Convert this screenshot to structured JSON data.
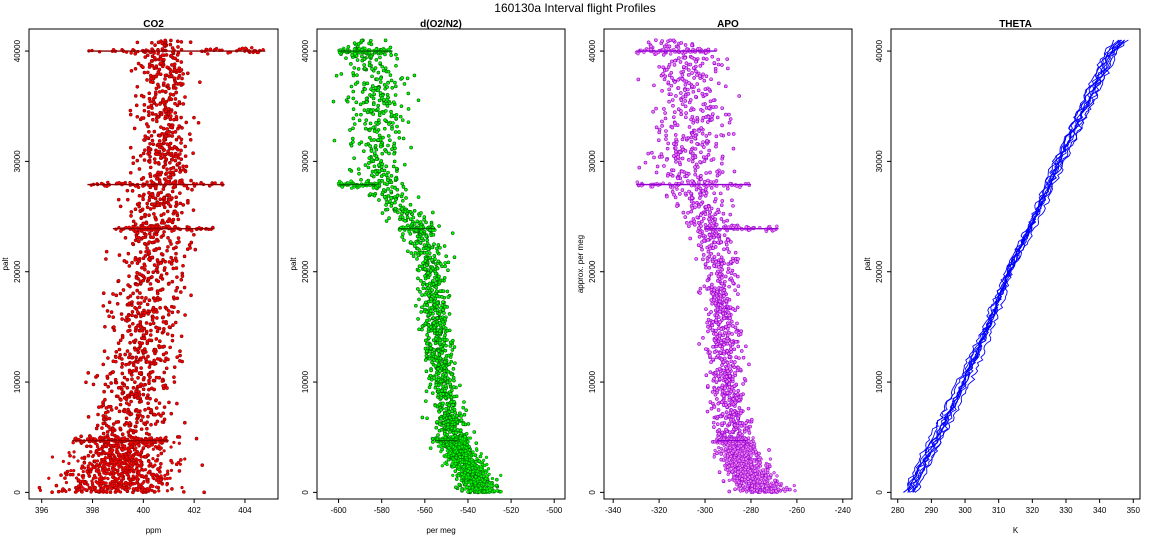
{
  "figure": {
    "title": "160130a   Interval flight Profiles"
  },
  "chart_data": [
    {
      "type": "scatter",
      "title": "CO2",
      "xlabel": "ppm",
      "ylabel": "palt",
      "xlim": [
        395.5,
        405.3
      ],
      "ylim": [
        -600,
        42000
      ],
      "xticks": [
        396,
        398,
        400,
        402,
        404
      ],
      "yticks": [
        0,
        10000,
        20000,
        30000,
        40000
      ],
      "grid": false,
      "colors": {
        "fill": "#ff0000",
        "edge": "#8b0000"
      },
      "profile": [
        {
          "y": 0,
          "x": 398.8,
          "spread": 2.4
        },
        {
          "y": 2000,
          "x": 399.0,
          "spread": 2.0
        },
        {
          "y": 5000,
          "x": 399.3,
          "spread": 1.6
        },
        {
          "y": 10000,
          "x": 399.6,
          "spread": 1.4
        },
        {
          "y": 15000,
          "x": 400.0,
          "spread": 1.3
        },
        {
          "y": 20000,
          "x": 400.3,
          "spread": 1.2
        },
        {
          "y": 25000,
          "x": 400.6,
          "spread": 1.1
        },
        {
          "y": 30000,
          "x": 400.8,
          "spread": 0.9
        },
        {
          "y": 35000,
          "x": 400.8,
          "spread": 0.9
        },
        {
          "y": 41000,
          "x": 400.8,
          "spread": 0.9
        }
      ],
      "level_legs": [
        {
          "y": 40000,
          "x0": 397.8,
          "x1": 404.8
        },
        {
          "y": 27900,
          "x0": 397.8,
          "x1": 403.2
        },
        {
          "y": 23900,
          "x0": 398.8,
          "x1": 402.8
        },
        {
          "y": 4700,
          "x0": 397.2,
          "x1": 401.0
        }
      ],
      "n_points": 1500
    },
    {
      "type": "scatter",
      "title": "d(O2/N2)",
      "xlabel": "per meg",
      "ylabel": "palt",
      "xlim": [
        -610,
        -495
      ],
      "ylim": [
        -600,
        42000
      ],
      "xticks": [
        -600,
        -580,
        -560,
        -540,
        -520,
        -500
      ],
      "yticks": [
        0,
        10000,
        20000,
        30000,
        40000
      ],
      "grid": false,
      "colors": {
        "fill": "#00ff00",
        "edge": "#006400"
      },
      "profile": [
        {
          "y": 0,
          "x": -533,
          "spread": 9
        },
        {
          "y": 2000,
          "x": -540,
          "spread": 8
        },
        {
          "y": 5000,
          "x": -547,
          "spread": 7
        },
        {
          "y": 10000,
          "x": -552,
          "spread": 6
        },
        {
          "y": 15000,
          "x": -555,
          "spread": 6
        },
        {
          "y": 20000,
          "x": -557,
          "spread": 6
        },
        {
          "y": 24000,
          "x": -562,
          "spread": 7
        },
        {
          "y": 27000,
          "x": -578,
          "spread": 10
        },
        {
          "y": 30000,
          "x": -582,
          "spread": 12
        },
        {
          "y": 35000,
          "x": -580,
          "spread": 13
        },
        {
          "y": 40000,
          "x": -585,
          "spread": 12
        },
        {
          "y": 41000,
          "x": -590,
          "spread": 10
        }
      ],
      "level_legs": [
        {
          "y": 40000,
          "x0": -600,
          "x1": -575
        },
        {
          "y": 27900,
          "x0": -600,
          "x1": -582
        },
        {
          "y": 23900,
          "x0": -572,
          "x1": -555
        },
        {
          "y": 4700,
          "x0": -555,
          "x1": -545
        }
      ],
      "n_points": 1500
    },
    {
      "type": "scatter",
      "title": "APO",
      "xlabel": "",
      "ylabel": "approx. per meg",
      "xlim": [
        -344,
        -236
      ],
      "ylim": [
        -600,
        42000
      ],
      "xticks": [
        -340,
        -320,
        -300,
        -280,
        -260,
        -240
      ],
      "yticks": [
        0,
        10000,
        20000,
        30000,
        40000
      ],
      "grid": false,
      "colors": {
        "fill": "#ee82ee",
        "edge": "#9400d3"
      },
      "profile": [
        {
          "y": 0,
          "x": -275,
          "spread": 10
        },
        {
          "y": 2000,
          "x": -282,
          "spread": 9
        },
        {
          "y": 5000,
          "x": -287,
          "spread": 8
        },
        {
          "y": 10000,
          "x": -291,
          "spread": 7
        },
        {
          "y": 15000,
          "x": -293,
          "spread": 7
        },
        {
          "y": 20000,
          "x": -293,
          "spread": 7
        },
        {
          "y": 24000,
          "x": -297,
          "spread": 8
        },
        {
          "y": 27000,
          "x": -305,
          "spread": 12
        },
        {
          "y": 30000,
          "x": -307,
          "spread": 14
        },
        {
          "y": 35000,
          "x": -305,
          "spread": 14
        },
        {
          "y": 40000,
          "x": -310,
          "spread": 13
        },
        {
          "y": 41000,
          "x": -315,
          "spread": 10
        }
      ],
      "level_legs": [
        {
          "y": 40000,
          "x0": -330,
          "x1": -295
        },
        {
          "y": 27900,
          "x0": -330,
          "x1": -280
        },
        {
          "y": 23900,
          "x0": -300,
          "x1": -268
        },
        {
          "y": 4700,
          "x0": -295,
          "x1": -282
        }
      ],
      "n_points": 1500
    },
    {
      "type": "line",
      "title": "THETA",
      "xlabel": "K",
      "ylabel": "palt",
      "xlim": [
        278,
        352
      ],
      "ylim": [
        -600,
        42000
      ],
      "xticks": [
        280,
        290,
        300,
        310,
        320,
        330,
        340,
        350
      ],
      "yticks": [
        0,
        10000,
        20000,
        30000,
        40000
      ],
      "grid": false,
      "colors": {
        "line": "#0000ff"
      },
      "profile": [
        {
          "y": 0,
          "x": 284
        },
        {
          "y": 2000,
          "x": 287
        },
        {
          "y": 5000,
          "x": 292
        },
        {
          "y": 10000,
          "x": 300
        },
        {
          "y": 15000,
          "x": 307
        },
        {
          "y": 20000,
          "x": 313
        },
        {
          "y": 25000,
          "x": 321
        },
        {
          "y": 30000,
          "x": 328
        },
        {
          "y": 35000,
          "x": 336
        },
        {
          "y": 40000,
          "x": 344
        },
        {
          "y": 41000,
          "x": 347
        }
      ],
      "n_profiles": 10
    }
  ]
}
